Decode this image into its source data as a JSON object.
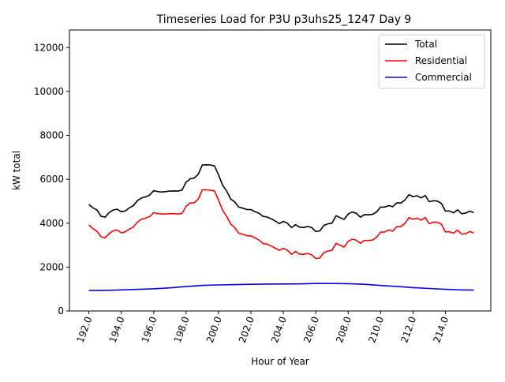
{
  "chart_data": {
    "type": "line",
    "title": "Timeseries Load for P3U p3uhs25_1247  Day 9",
    "xlabel": "Hour of Year",
    "ylabel": "kW total",
    "xlim": [
      190.8,
      216.8
    ],
    "ylim": [
      0,
      12800
    ],
    "xticks": [
      192,
      194,
      196,
      198,
      200,
      202,
      204,
      206,
      208,
      210,
      212,
      214
    ],
    "xtick_labels": [
      "192.0",
      "194.0",
      "196.0",
      "198.0",
      "200.0",
      "202.0",
      "204.0",
      "206.0",
      "208.0",
      "210.0",
      "212.0",
      "214.0"
    ],
    "yticks": [
      0,
      2000,
      4000,
      6000,
      8000,
      10000,
      12000
    ],
    "ytick_labels": [
      "0",
      "2000",
      "4000",
      "6000",
      "8000",
      "10000",
      "12000"
    ],
    "grid": false,
    "legend_position": "top-right",
    "series": [
      {
        "name": "Total",
        "color": "#000000",
        "x": [
          192.0,
          192.25,
          192.5,
          192.75,
          193.0,
          193.25,
          193.5,
          193.75,
          194.0,
          194.25,
          194.5,
          194.75,
          195.0,
          195.25,
          195.5,
          195.75,
          196.0,
          196.25,
          196.5,
          196.75,
          197.0,
          197.25,
          197.5,
          197.75,
          198.0,
          198.25,
          198.5,
          198.75,
          199.0,
          199.25,
          199.5,
          199.75,
          200.0,
          200.25,
          200.5,
          200.75,
          201.0,
          201.25,
          201.5,
          201.75,
          202.0,
          202.25,
          202.5,
          202.75,
          203.0,
          203.25,
          203.5,
          203.75,
          204.0,
          204.25,
          204.5,
          204.75,
          205.0,
          205.25,
          205.5,
          205.75,
          206.0,
          206.25,
          206.5,
          206.75,
          207.0,
          207.25,
          207.5,
          207.75,
          208.0,
          208.25,
          208.5,
          208.75,
          209.0,
          209.25,
          209.5,
          209.75,
          210.0,
          210.25,
          210.5,
          210.75,
          211.0,
          211.25,
          211.5,
          211.75,
          212.0,
          212.25,
          212.5,
          212.75,
          213.0,
          213.25,
          213.5,
          213.75,
          214.0,
          214.25,
          214.5,
          214.75,
          215.0,
          215.25,
          215.5,
          215.75
        ],
        "y": [
          4850,
          4700,
          4600,
          4320,
          4270,
          4480,
          4600,
          4640,
          4520,
          4560,
          4700,
          4800,
          5030,
          5150,
          5200,
          5280,
          5480,
          5440,
          5420,
          5440,
          5460,
          5470,
          5460,
          5510,
          5870,
          6020,
          6050,
          6230,
          6650,
          6660,
          6650,
          6610,
          6200,
          5730,
          5470,
          5100,
          4970,
          4730,
          4680,
          4620,
          4620,
          4520,
          4450,
          4310,
          4280,
          4200,
          4100,
          3980,
          4080,
          4000,
          3800,
          3930,
          3820,
          3800,
          3850,
          3800,
          3620,
          3650,
          3900,
          3970,
          4000,
          4340,
          4250,
          4170,
          4420,
          4510,
          4450,
          4270,
          4390,
          4380,
          4400,
          4510,
          4730,
          4730,
          4800,
          4750,
          4930,
          4920,
          5050,
          5300,
          5210,
          5250,
          5150,
          5260,
          4980,
          5020,
          5010,
          4900,
          4550,
          4560,
          4470,
          4610,
          4430,
          4460,
          4550,
          4480
        ]
      },
      {
        "name": "Residential",
        "color": "#ff0000",
        "x": [
          192.0,
          192.25,
          192.5,
          192.75,
          193.0,
          193.25,
          193.5,
          193.75,
          194.0,
          194.25,
          194.5,
          194.75,
          195.0,
          195.25,
          195.5,
          195.75,
          196.0,
          196.25,
          196.5,
          196.75,
          197.0,
          197.25,
          197.5,
          197.75,
          198.0,
          198.25,
          198.5,
          198.75,
          199.0,
          199.25,
          199.5,
          199.75,
          200.0,
          200.25,
          200.5,
          200.75,
          201.0,
          201.25,
          201.5,
          201.75,
          202.0,
          202.25,
          202.5,
          202.75,
          203.0,
          203.25,
          203.5,
          203.75,
          204.0,
          204.25,
          204.5,
          204.75,
          205.0,
          205.25,
          205.5,
          205.75,
          206.0,
          206.25,
          206.5,
          206.75,
          207.0,
          207.25,
          207.5,
          207.75,
          208.0,
          208.25,
          208.5,
          208.75,
          209.0,
          209.25,
          209.5,
          209.75,
          210.0,
          210.25,
          210.5,
          210.75,
          211.0,
          211.25,
          211.5,
          211.75,
          212.0,
          212.25,
          212.5,
          212.75,
          213.0,
          213.25,
          213.5,
          213.75,
          214.0,
          214.25,
          214.5,
          214.75,
          215.0,
          215.25,
          215.5,
          215.75
        ],
        "y": [
          3920,
          3750,
          3640,
          3380,
          3330,
          3530,
          3650,
          3690,
          3560,
          3610,
          3730,
          3830,
          4050,
          4180,
          4230,
          4300,
          4480,
          4440,
          4410,
          4420,
          4430,
          4430,
          4410,
          4440,
          4780,
          4920,
          4930,
          5100,
          5520,
          5520,
          5500,
          5470,
          5050,
          4580,
          4320,
          3960,
          3800,
          3540,
          3490,
          3430,
          3420,
          3330,
          3230,
          3070,
          3040,
          2960,
          2860,
          2760,
          2850,
          2770,
          2580,
          2710,
          2590,
          2580,
          2620,
          2560,
          2390,
          2410,
          2660,
          2730,
          2760,
          3080,
          3000,
          2910,
          3170,
          3270,
          3230,
          3080,
          3210,
          3210,
          3230,
          3360,
          3590,
          3600,
          3690,
          3640,
          3840,
          3840,
          3990,
          4250,
          4180,
          4230,
          4140,
          4260,
          3980,
          4040,
          4040,
          3950,
          3600,
          3610,
          3540,
          3690,
          3500,
          3520,
          3620,
          3550
        ]
      },
      {
        "name": "Commercial",
        "color": "#0000ff",
        "x": [
          192.0,
          193.0,
          194.0,
          195.0,
          196.0,
          197.0,
          198.0,
          199.0,
          200.0,
          201.0,
          202.0,
          203.0,
          204.0,
          205.0,
          206.0,
          207.0,
          208.0,
          209.0,
          210.0,
          211.0,
          212.0,
          213.0,
          214.0,
          215.0,
          215.75
        ],
        "y": [
          930,
          940,
          960,
          985,
          1010,
          1055,
          1110,
          1165,
          1185,
          1200,
          1215,
          1225,
          1230,
          1235,
          1250,
          1250,
          1245,
          1215,
          1160,
          1120,
          1065,
          1025,
          985,
          960,
          950
        ]
      }
    ]
  }
}
